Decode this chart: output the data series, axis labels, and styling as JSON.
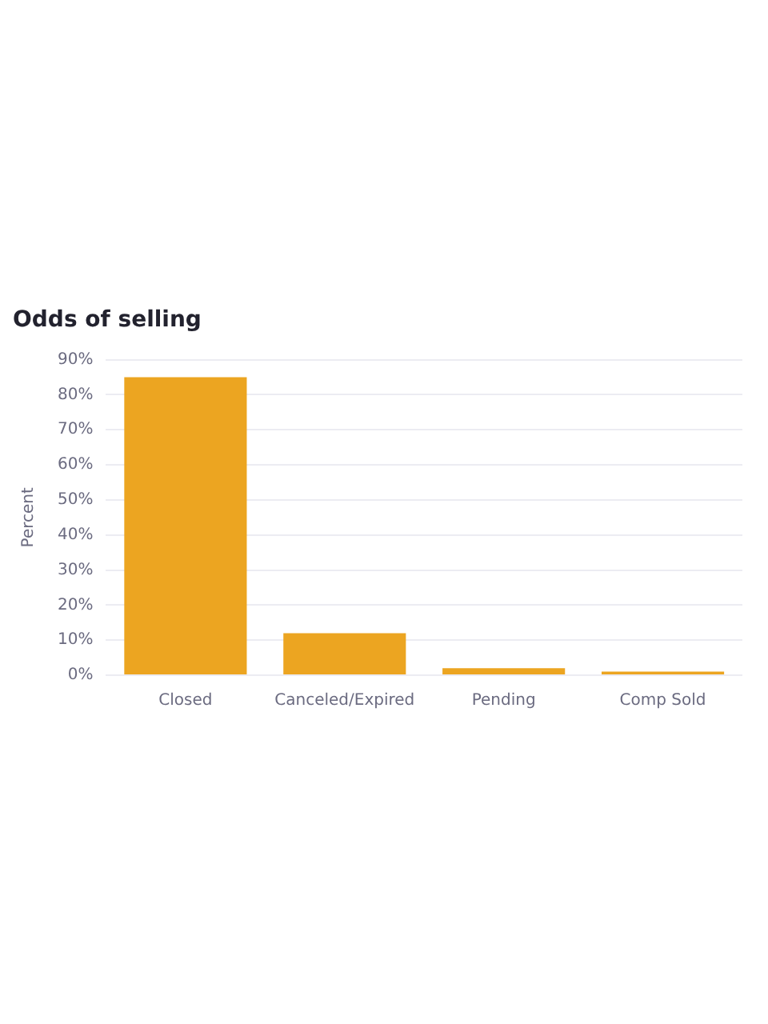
{
  "chart_data": {
    "type": "bar",
    "title": "Odds of selling",
    "ylabel": "Percent",
    "categories": [
      "Closed",
      "Canceled/Expired",
      "Pending",
      "Comp Sold"
    ],
    "values": [
      85,
      12,
      2,
      1
    ],
    "color": "#eca521",
    "ylim": [
      0,
      90
    ],
    "yticks": [
      {
        "value": 0,
        "label": "0%"
      },
      {
        "value": 10,
        "label": "10%"
      },
      {
        "value": 20,
        "label": "20%"
      },
      {
        "value": 30,
        "label": "30%"
      },
      {
        "value": 40,
        "label": "40%"
      },
      {
        "value": 50,
        "label": "50%"
      },
      {
        "value": 60,
        "label": "60%"
      },
      {
        "value": 70,
        "label": "70%"
      },
      {
        "value": 80,
        "label": "80%"
      },
      {
        "value": 90,
        "label": "90%"
      }
    ],
    "grid": "y",
    "legend": false
  }
}
